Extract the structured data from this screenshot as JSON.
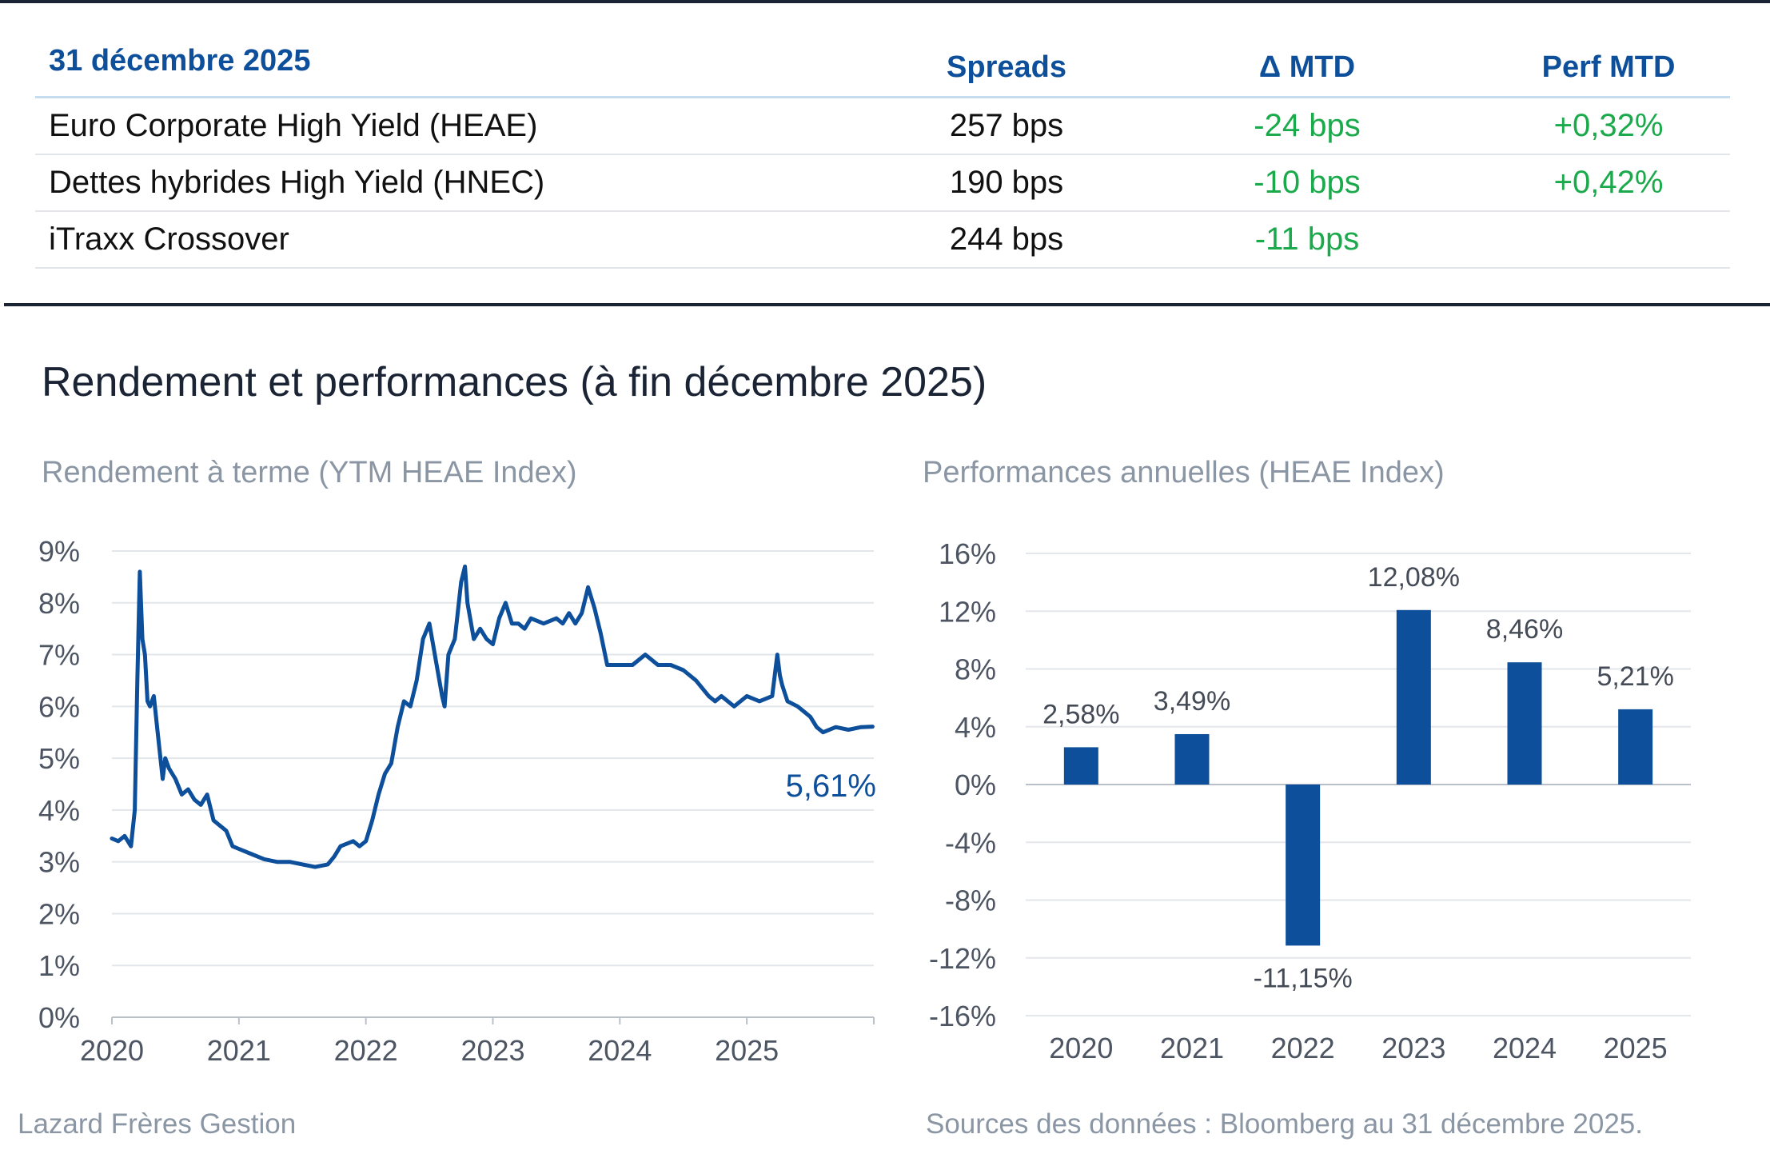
{
  "table": {
    "headers": [
      "31 décembre 2025",
      "Spreads",
      "Δ MTD",
      "Perf MTD"
    ],
    "rows": [
      [
        "Euro Corporate High Yield (HEAE)",
        "257 bps",
        "-24 bps",
        "+0,32%"
      ],
      [
        "Dettes hybrides High Yield (HNEC)",
        "190 bps",
        "-10 bps",
        "+0,42%"
      ],
      [
        "iTraxx Crossover",
        "244 bps",
        "-11 bps",
        ""
      ]
    ]
  },
  "section_title": "Rendement et performances (à fin décembre 2025)",
  "footer": {
    "left": "Lazard Frères Gestion",
    "right": "Sources des données : Bloomberg au 31 décembre 2025."
  },
  "colors": {
    "primary": "#0d4f9a",
    "positive": "#1aaa4b",
    "rule": "#1b2435",
    "muted": "#8b96a4"
  },
  "chart_data": [
    {
      "type": "line",
      "title": "Rendement à terme (YTM HEAE Index)",
      "xlabel": "",
      "ylabel": "",
      "xlim": [
        2020,
        2026
      ],
      "ylim": [
        0,
        9
      ],
      "x_ticks": [
        2020,
        2021,
        2022,
        2023,
        2024,
        2025
      ],
      "y_ticks": [
        "0%",
        "1%",
        "2%",
        "3%",
        "4%",
        "5%",
        "6%",
        "7%",
        "8%",
        "9%"
      ],
      "end_label": "5,61%",
      "series": [
        {
          "name": "YTM HEAE Index",
          "x": [
            2020.0,
            2020.05,
            2020.1,
            2020.15,
            2020.18,
            2020.2,
            2020.22,
            2020.24,
            2020.26,
            2020.28,
            2020.3,
            2020.33,
            2020.36,
            2020.4,
            2020.42,
            2020.45,
            2020.5,
            2020.55,
            2020.6,
            2020.65,
            2020.7,
            2020.75,
            2020.8,
            2020.85,
            2020.9,
            2020.95,
            2021.0,
            2021.1,
            2021.2,
            2021.3,
            2021.4,
            2021.5,
            2021.6,
            2021.7,
            2021.75,
            2021.8,
            2021.9,
            2021.95,
            2022.0,
            2022.05,
            2022.1,
            2022.15,
            2022.2,
            2022.25,
            2022.3,
            2022.35,
            2022.4,
            2022.45,
            2022.5,
            2022.6,
            2022.62,
            2022.65,
            2022.7,
            2022.75,
            2022.78,
            2022.8,
            2022.85,
            2022.9,
            2022.95,
            2023.0,
            2023.05,
            2023.1,
            2023.15,
            2023.2,
            2023.25,
            2023.3,
            2023.4,
            2023.5,
            2023.55,
            2023.6,
            2023.65,
            2023.7,
            2023.75,
            2023.8,
            2023.85,
            2023.9,
            2023.95,
            2024.0,
            2024.1,
            2024.2,
            2024.3,
            2024.4,
            2024.5,
            2024.6,
            2024.7,
            2024.75,
            2024.8,
            2024.9,
            2025.0,
            2025.1,
            2025.2,
            2025.24,
            2025.26,
            2025.28,
            2025.32,
            2025.4,
            2025.5,
            2025.55,
            2025.6,
            2025.7,
            2025.8,
            2025.9,
            2025.99
          ],
          "values": [
            3.45,
            3.4,
            3.5,
            3.3,
            4.0,
            6.5,
            8.6,
            7.3,
            7.0,
            6.1,
            6.0,
            6.2,
            5.5,
            4.6,
            5.0,
            4.8,
            4.6,
            4.3,
            4.4,
            4.2,
            4.1,
            4.3,
            3.8,
            3.7,
            3.6,
            3.3,
            3.25,
            3.15,
            3.05,
            3.0,
            3.0,
            2.95,
            2.9,
            2.95,
            3.1,
            3.3,
            3.4,
            3.3,
            3.4,
            3.8,
            4.3,
            4.7,
            4.9,
            5.6,
            6.1,
            6.0,
            6.5,
            7.3,
            7.6,
            6.2,
            6.0,
            7.0,
            7.3,
            8.4,
            8.7,
            8.0,
            7.3,
            7.5,
            7.3,
            7.2,
            7.7,
            8.0,
            7.6,
            7.6,
            7.5,
            7.7,
            7.6,
            7.7,
            7.6,
            7.8,
            7.6,
            7.8,
            8.3,
            7.9,
            7.4,
            6.8,
            6.8,
            6.8,
            6.8,
            7.0,
            6.8,
            6.8,
            6.7,
            6.5,
            6.2,
            6.1,
            6.2,
            6.0,
            6.2,
            6.1,
            6.2,
            7.0,
            6.6,
            6.4,
            6.1,
            6.0,
            5.8,
            5.6,
            5.5,
            5.6,
            5.55,
            5.6,
            5.61
          ]
        }
      ]
    },
    {
      "type": "bar",
      "title": "Performances annuelles (HEAE Index)",
      "xlabel": "",
      "ylabel": "",
      "categories": [
        "2020",
        "2021",
        "2022",
        "2023",
        "2024",
        "2025"
      ],
      "values": [
        2.58,
        3.49,
        -11.15,
        12.08,
        8.46,
        5.21
      ],
      "value_labels": [
        "2,58%",
        "3,49%",
        "-11,15%",
        "12,08%",
        "8,46%",
        "5,21%"
      ],
      "ylim": [
        -16,
        16
      ],
      "y_ticks": [
        "16%",
        "12%",
        "8%",
        "4%",
        "0%",
        "-4%",
        "-8%",
        "-12%",
        "-16%"
      ]
    }
  ]
}
